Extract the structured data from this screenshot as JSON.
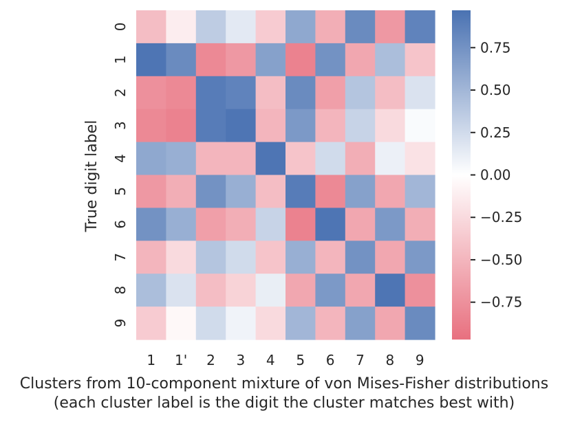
{
  "chart_data": {
    "type": "heatmap",
    "title": "",
    "xlabel_lines": [
      "Clusters from 10-component mixture of von Mises-Fisher distributions",
      "(each cluster label is the digit the cluster matches best with)"
    ],
    "ylabel": "True digit label",
    "x_categories": [
      "1",
      "1'",
      "2",
      "3",
      "4",
      "5",
      "6",
      "7",
      "8",
      "9"
    ],
    "y_categories": [
      "0",
      "1",
      "2",
      "3",
      "4",
      "5",
      "6",
      "7",
      "8",
      "9"
    ],
    "values": [
      [
        -0.45,
        -0.12,
        0.35,
        0.15,
        -0.35,
        0.6,
        -0.55,
        0.8,
        -0.7,
        0.85
      ],
      [
        0.95,
        0.8,
        -0.8,
        -0.7,
        0.65,
        -0.85,
        0.75,
        -0.6,
        0.45,
        -0.4
      ],
      [
        -0.75,
        -0.8,
        0.9,
        0.85,
        -0.45,
        0.8,
        -0.65,
        0.4,
        -0.45,
        0.2
      ],
      [
        -0.8,
        -0.85,
        0.9,
        0.95,
        -0.5,
        0.7,
        -0.5,
        0.3,
        -0.25,
        0.03
      ],
      [
        0.6,
        0.55,
        -0.5,
        -0.5,
        0.95,
        -0.4,
        0.25,
        -0.55,
        0.1,
        -0.2
      ],
      [
        -0.7,
        -0.55,
        0.75,
        0.55,
        -0.45,
        0.9,
        -0.8,
        0.65,
        -0.6,
        0.5
      ],
      [
        0.75,
        0.55,
        -0.65,
        -0.55,
        0.3,
        -0.85,
        0.95,
        -0.6,
        0.7,
        -0.55
      ],
      [
        -0.5,
        -0.25,
        0.4,
        0.25,
        -0.4,
        0.55,
        -0.5,
        0.75,
        -0.6,
        0.7
      ],
      [
        0.45,
        0.2,
        -0.45,
        -0.3,
        0.12,
        -0.6,
        0.7,
        -0.6,
        0.95,
        -0.75
      ],
      [
        -0.35,
        -0.05,
        0.25,
        0.08,
        -0.25,
        0.5,
        -0.5,
        0.65,
        -0.6,
        0.8
      ]
    ],
    "colorbar": {
      "ticks": [
        "0.75",
        "0.50",
        "0.25",
        "0.00",
        "−0.25",
        "−0.50",
        "−0.75"
      ],
      "tick_values": [
        0.75,
        0.5,
        0.25,
        0.0,
        -0.25,
        -0.5,
        -0.75
      ],
      "vmin": -0.97,
      "vmax": 0.97,
      "colormap": "diverging_pink_white_blue"
    },
    "colors": {
      "negative": "#e8707f",
      "center": "#ffffff",
      "positive": "#4a72b2"
    }
  }
}
